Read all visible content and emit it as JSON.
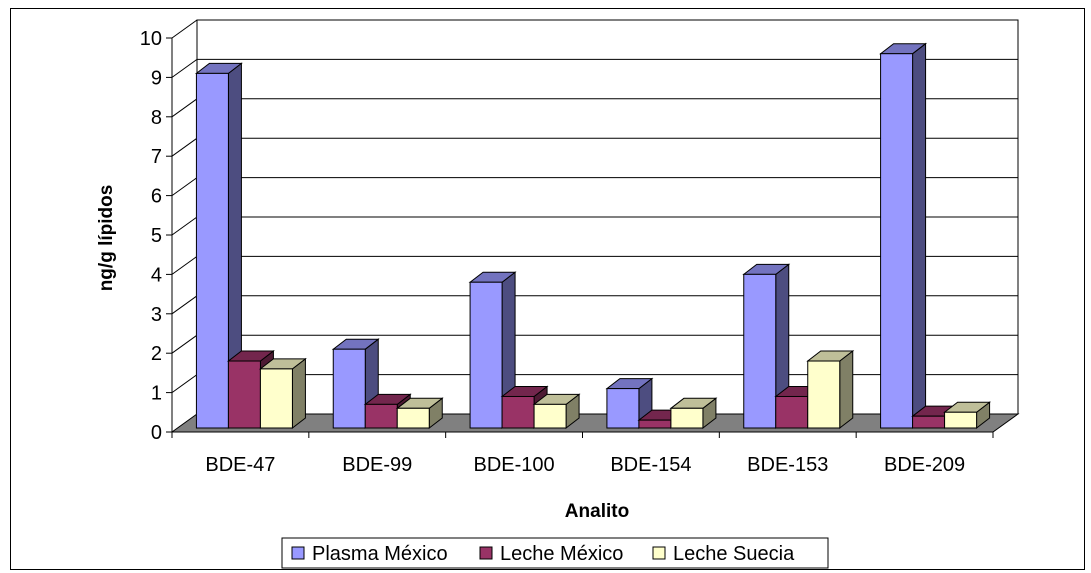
{
  "chart_data": {
    "type": "bar",
    "style": "3d-clustered-column",
    "title": "",
    "xlabel": "Analito",
    "ylabel": "ng/g lípidos",
    "ylim": [
      0,
      10
    ],
    "yticks": [
      "0",
      "1",
      "2",
      "3",
      "4",
      "5",
      "6",
      "7",
      "8",
      "9",
      "10"
    ],
    "grid": true,
    "legend_position": "bottom",
    "categories": [
      "BDE-47",
      "BDE-99",
      "BDE-100",
      "BDE-154",
      "BDE-153",
      "BDE-209"
    ],
    "series": [
      {
        "name": "Plasma México",
        "color": "#9999FF",
        "values": [
          9.0,
          2.0,
          3.7,
          1.0,
          3.9,
          9.5
        ]
      },
      {
        "name": "Leche México",
        "color": "#993366",
        "values": [
          1.7,
          0.6,
          0.8,
          0.2,
          0.8,
          0.3
        ]
      },
      {
        "name": "Leche Suecia",
        "color": "#FFFFCC",
        "values": [
          1.5,
          0.5,
          0.6,
          0.5,
          1.7,
          0.4
        ]
      }
    ],
    "floor_color": "#808080"
  }
}
